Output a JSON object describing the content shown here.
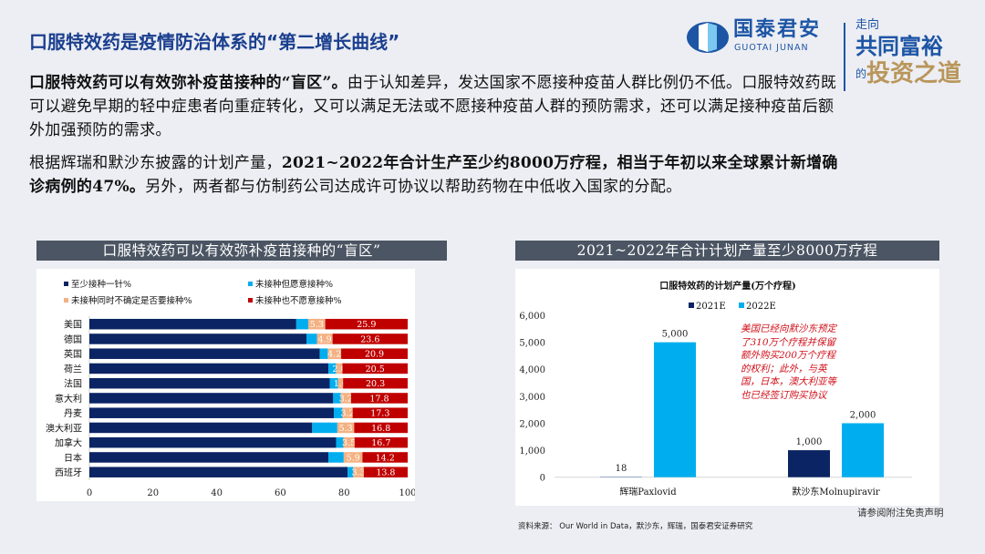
{
  "header": {
    "title": "口服特效药是疫情防治体系的“第二增长曲线”",
    "logo_cn": "国泰君安",
    "logo_en": "GUOTAI JUNAN",
    "slogan": {
      "line1": "走向",
      "line2": "共同富裕",
      "line3": "的",
      "line4": "投资之道"
    }
  },
  "body": {
    "p1_bold": "口服特效药可以有效弥补疫苗接种的“盲区”。",
    "p1_rest": "由于认知差异，发达国家不愿接种疫苗人群比例仍不低。口服特效药既可以避免早期的轻中症患者向重症转化，又可以满足无法或不愿接种疫苗人群的预防需求，还可以满足接种疫苗后额外加强预防的需求。",
    "p2_a": "根据辉瑞和默沙东披露的计划产量，",
    "p2_bold": "2021~2022年合计生产至少约8000万疗程，相当于年初以来全球累计新增确诊病例的47%。",
    "p2_rest": "另外，两者都与仿制药公司达成许可协议以帮助药物在中低收入国家的分配。"
  },
  "left_header": "口服特效药可以有效弥补疫苗接种的“盲区”",
  "right_header": "2021~2022年合计计划产量至少8000万疗程",
  "annotation": "美国已经向默沙东预定了310万个疗程并保留额外购买200万个疗程的权利；此外，与英国，日本，澳大利亚等也已经签订购买协议",
  "source": "资料来源： Our World in Data，默沙东，辉瑞，国泰君安证券研究",
  "disclaimer": "请参阅附注免责声明",
  "chart_data": [
    {
      "type": "bar",
      "orientation": "horizontal",
      "stacked": true,
      "categories": [
        "美国",
        "德国",
        "英国",
        "荷兰",
        "法国",
        "意大利",
        "丹麦",
        "澳大利亚",
        "加拿大",
        "日本",
        "西班牙"
      ],
      "series": [
        {
          "name": "至少接种一针%",
          "color": "#0b2463",
          "values": [
            65.0,
            68.2,
            72.4,
            75.1,
            75.5,
            76.6,
            76.8,
            70.0,
            77.5,
            75.1,
            81.1
          ]
        },
        {
          "name": "未接种但愿意接种%",
          "color": "#00aeef",
          "values": [
            3.8,
            3.3,
            2.5,
            2.4,
            2.6,
            2.4,
            2.7,
            7.9,
            2.3,
            4.8,
            1.8
          ]
        },
        {
          "name": "未接种同时不确定是否要接种%",
          "color": "#f4b183",
          "values": [
            5.3,
            4.9,
            4.2,
            2.0,
            1.6,
            3.2,
            3.2,
            5.3,
            3.5,
            5.9,
            3.3
          ]
        },
        {
          "name": "未接种也不愿意接种%",
          "color": "#c00000",
          "values": [
            25.9,
            23.6,
            20.9,
            20.5,
            20.3,
            17.8,
            17.3,
            16.8,
            16.7,
            14.2,
            13.8
          ]
        }
      ],
      "labeled_series": [
        2,
        3
      ],
      "xlim": [
        0,
        100
      ],
      "xticks": [
        "0",
        "20",
        "40",
        "60",
        "80",
        "100"
      ],
      "legend": "top"
    },
    {
      "type": "bar",
      "title": "口服特效药的计划产量(万个疗程)",
      "categories": [
        "辉瑞Paxlovid",
        "默沙东Molnupiravir"
      ],
      "series": [
        {
          "name": "2021E",
          "color": "#0b2463",
          "values": [
            18,
            1000
          ]
        },
        {
          "name": "2022E",
          "color": "#00aeef",
          "values": [
            5000,
            2000
          ]
        }
      ],
      "data_labels": [
        [
          "18",
          "1,000"
        ],
        [
          "5,000",
          "2,000"
        ]
      ],
      "ylim": [
        0,
        6000
      ],
      "yticks": [
        "0",
        "1,000",
        "2,000",
        "3,000",
        "4,000",
        "5,000",
        "6,000"
      ],
      "legend": "top"
    }
  ]
}
